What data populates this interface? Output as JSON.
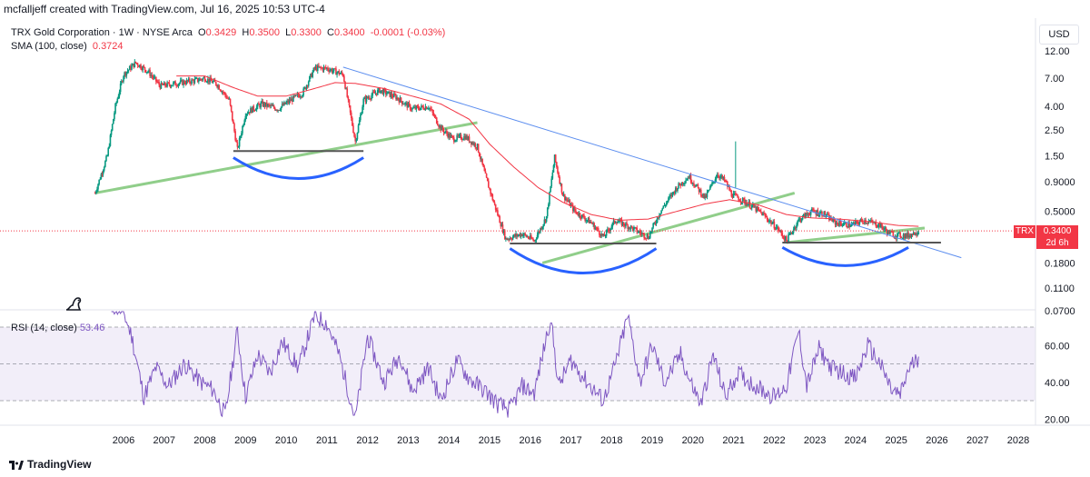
{
  "attribution": "mcfalljeff created with TradingView.com, Jul 16, 2025 10:53 UTC-4",
  "symbol_title": "TRX Gold Corporation · 1W · NYSE Arca",
  "ohlc": {
    "o_label": "O",
    "o": "0.3429",
    "h_label": "H",
    "h": "0.3500",
    "l_label": "L",
    "l": "0.3300",
    "c_label": "C",
    "c": "0.3400",
    "change": "-0.0001 (-0.03%)"
  },
  "sma_label": "SMA (100, close)",
  "sma_value": "0.3724",
  "rsi_label": "RSI (14, close)",
  "rsi_value": "53.46",
  "currency": "USD",
  "price_tag": {
    "ticker": "TRX",
    "price": "0.3400",
    "countdown": "2d 6h"
  },
  "branding": "TradingView",
  "colors": {
    "up": "#089981",
    "down": "#f23645",
    "sma": "#f23645",
    "rsi": "#7e57c2",
    "trend": "#5b8def",
    "support": "#7cc576",
    "arc": "#2962ff",
    "level": "#555555"
  },
  "chart_data": [
    {
      "type": "candlestick",
      "scale": "log",
      "price_ticks": [
        "12.00",
        "7.00",
        "4.00",
        "2.50",
        "1.50",
        "0.9000",
        "0.5000",
        "0.3400",
        "0.1800",
        "0.1100",
        "0.0700"
      ],
      "x_ticks": [
        "2006",
        "2007",
        "2008",
        "2009",
        "2010",
        "2011",
        "2012",
        "2013",
        "2014",
        "2015",
        "2016",
        "2017",
        "2018",
        "2019",
        "2020",
        "2021",
        "2022",
        "2023",
        "2024",
        "2025",
        "2026",
        "2027",
        "2028"
      ],
      "price_path": [
        [
          2005.3,
          0.72
        ],
        [
          2005.6,
          1.5
        ],
        [
          2005.8,
          4.0
        ],
        [
          2006.0,
          7.5
        ],
        [
          2006.3,
          9.5
        ],
        [
          2006.6,
          8.0
        ],
        [
          2006.9,
          6.0
        ],
        [
          2007.3,
          6.3
        ],
        [
          2007.8,
          6.7
        ],
        [
          2008.0,
          7.0
        ],
        [
          2008.3,
          6.2
        ],
        [
          2008.6,
          4.5
        ],
        [
          2008.8,
          1.7
        ],
        [
          2009.0,
          3.5
        ],
        [
          2009.4,
          4.2
        ],
        [
          2009.8,
          3.8
        ],
        [
          2010.1,
          4.5
        ],
        [
          2010.4,
          5.2
        ],
        [
          2010.7,
          8.5
        ],
        [
          2011.0,
          8.5
        ],
        [
          2011.4,
          7.5
        ],
        [
          2011.7,
          2.0
        ],
        [
          2011.9,
          4.5
        ],
        [
          2012.3,
          5.5
        ],
        [
          2012.7,
          4.8
        ],
        [
          2013.1,
          3.8
        ],
        [
          2013.5,
          4.0
        ],
        [
          2013.8,
          2.6
        ],
        [
          2014.1,
          2.1
        ],
        [
          2014.4,
          2.2
        ],
        [
          2014.7,
          1.8
        ],
        [
          2014.9,
          1.0
        ],
        [
          2015.1,
          0.6
        ],
        [
          2015.4,
          0.29
        ],
        [
          2015.8,
          0.32
        ],
        [
          2016.1,
          0.28
        ],
        [
          2016.4,
          0.45
        ],
        [
          2016.6,
          1.45
        ],
        [
          2016.8,
          0.7
        ],
        [
          2017.1,
          0.5
        ],
        [
          2017.5,
          0.4
        ],
        [
          2017.8,
          0.3
        ],
        [
          2018.1,
          0.42
        ],
        [
          2018.5,
          0.36
        ],
        [
          2018.9,
          0.3
        ],
        [
          2019.2,
          0.5
        ],
        [
          2019.6,
          0.8
        ],
        [
          2019.9,
          1.0
        ],
        [
          2020.3,
          0.65
        ],
        [
          2020.6,
          1.05
        ],
        [
          2020.8,
          0.9
        ],
        [
          2020.95,
          0.7
        ],
        [
          2021.3,
          0.6
        ],
        [
          2021.7,
          0.48
        ],
        [
          2022.1,
          0.35
        ],
        [
          2022.3,
          0.28
        ],
        [
          2022.6,
          0.42
        ],
        [
          2022.9,
          0.5
        ],
        [
          2023.2,
          0.48
        ],
        [
          2023.5,
          0.4
        ],
        [
          2023.9,
          0.38
        ],
        [
          2024.2,
          0.42
        ],
        [
          2024.6,
          0.38
        ],
        [
          2024.8,
          0.33
        ],
        [
          2025.0,
          0.31
        ],
        [
          2025.3,
          0.31
        ],
        [
          2025.55,
          0.34
        ]
      ],
      "sma_path": [
        [
          2007.3,
          7.3
        ],
        [
          2008.0,
          7.3
        ],
        [
          2008.7,
          5.8
        ],
        [
          2009.3,
          4.9
        ],
        [
          2010.0,
          4.9
        ],
        [
          2010.7,
          5.7
        ],
        [
          2011.2,
          6.4
        ],
        [
          2011.7,
          6.3
        ],
        [
          2012.4,
          5.7
        ],
        [
          2013.1,
          4.9
        ],
        [
          2013.8,
          4.2
        ],
        [
          2014.5,
          3.1
        ],
        [
          2015.0,
          1.9
        ],
        [
          2015.6,
          1.2
        ],
        [
          2016.2,
          0.8
        ],
        [
          2016.8,
          0.6
        ],
        [
          2017.5,
          0.47
        ],
        [
          2018.2,
          0.42
        ],
        [
          2018.9,
          0.43
        ],
        [
          2019.6,
          0.5
        ],
        [
          2020.3,
          0.58
        ],
        [
          2020.9,
          0.63
        ],
        [
          2021.6,
          0.57
        ],
        [
          2022.3,
          0.47
        ],
        [
          2022.9,
          0.44
        ],
        [
          2023.6,
          0.43
        ],
        [
          2024.3,
          0.41
        ],
        [
          2025.0,
          0.38
        ],
        [
          2025.55,
          0.372
        ]
      ],
      "annotations": {
        "resistance_trendline": [
          [
            2011.4,
            8.7
          ],
          [
            2026.6,
            0.2
          ]
        ],
        "support_lines": [
          [
            [
              2005.3,
              0.72
            ],
            [
              2014.7,
              2.9
            ]
          ],
          [
            [
              2016.3,
              0.18
            ],
            [
              2022.5,
              0.72
            ]
          ],
          [
            [
              2022.3,
              0.27
            ],
            [
              2025.7,
              0.36
            ]
          ]
        ],
        "horizontal_levels": [
          [
            2008.7,
            2011.9,
            1.65
          ],
          [
            2015.5,
            2019.1,
            0.265
          ],
          [
            2022.2,
            2026.1,
            0.27
          ]
        ],
        "arcs": [
          [
            2008.7,
            2011.9,
            1.45,
            23
          ],
          [
            2015.5,
            2019.1,
            0.24,
            27
          ],
          [
            2022.2,
            2025.3,
            0.245,
            20
          ]
        ]
      }
    },
    {
      "type": "line",
      "name": "RSI (14, close)",
      "y_ticks": [
        "60.00",
        "40.00",
        "20.00"
      ],
      "bands": [
        70,
        50,
        30
      ],
      "rsi_path": [
        [
          2005.7,
          82
        ],
        [
          2006.0,
          78
        ],
        [
          2006.2,
          65
        ],
        [
          2006.5,
          32
        ],
        [
          2006.8,
          48
        ],
        [
          2007.1,
          38
        ],
        [
          2007.5,
          50
        ],
        [
          2007.9,
          40
        ],
        [
          2008.2,
          36
        ],
        [
          2008.5,
          22
        ],
        [
          2008.8,
          68
        ],
        [
          2009.0,
          32
        ],
        [
          2009.3,
          55
        ],
        [
          2009.6,
          45
        ],
        [
          2009.9,
          62
        ],
        [
          2010.3,
          48
        ],
        [
          2010.7,
          76
        ],
        [
          2011.0,
          72
        ],
        [
          2011.3,
          55
        ],
        [
          2011.7,
          20
        ],
        [
          2012.0,
          65
        ],
        [
          2012.4,
          40
        ],
        [
          2012.8,
          55
        ],
        [
          2013.1,
          35
        ],
        [
          2013.5,
          48
        ],
        [
          2013.8,
          30
        ],
        [
          2014.2,
          52
        ],
        [
          2014.5,
          42
        ],
        [
          2014.9,
          35
        ],
        [
          2015.2,
          28
        ],
        [
          2015.5,
          25
        ],
        [
          2015.8,
          38
        ],
        [
          2016.1,
          34
        ],
        [
          2016.5,
          75
        ],
        [
          2016.7,
          38
        ],
        [
          2017.0,
          52
        ],
        [
          2017.4,
          40
        ],
        [
          2017.8,
          30
        ],
        [
          2018.1,
          50
        ],
        [
          2018.4,
          76
        ],
        [
          2018.7,
          40
        ],
        [
          2019.0,
          60
        ],
        [
          2019.3,
          40
        ],
        [
          2019.7,
          55
        ],
        [
          2019.9,
          42
        ],
        [
          2020.2,
          28
        ],
        [
          2020.5,
          55
        ],
        [
          2020.8,
          32
        ],
        [
          2021.1,
          45
        ],
        [
          2021.4,
          40
        ],
        [
          2021.7,
          36
        ],
        [
          2022.0,
          32
        ],
        [
          2022.3,
          38
        ],
        [
          2022.6,
          68
        ],
        [
          2022.8,
          38
        ],
        [
          2023.1,
          58
        ],
        [
          2023.4,
          48
        ],
        [
          2023.7,
          45
        ],
        [
          2024.0,
          42
        ],
        [
          2024.3,
          60
        ],
        [
          2024.6,
          50
        ],
        [
          2024.9,
          35
        ],
        [
          2025.1,
          33
        ],
        [
          2025.3,
          47
        ],
        [
          2025.55,
          53.5
        ]
      ]
    }
  ]
}
